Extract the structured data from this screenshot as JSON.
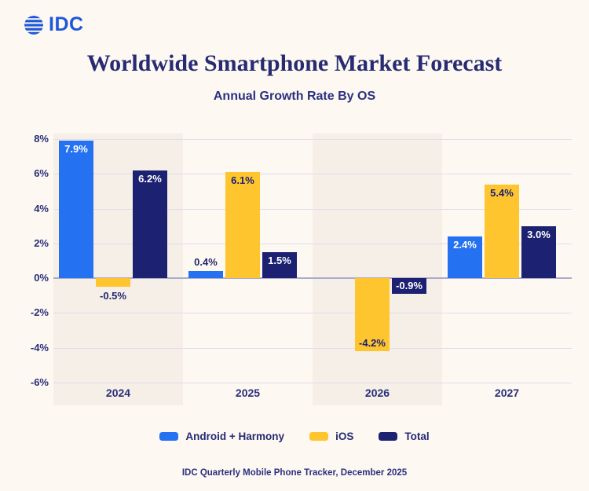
{
  "logo": {
    "brand": "IDC"
  },
  "header": {
    "title": "Worldwide Smartphone Market Forecast",
    "subtitle": "Annual Growth Rate By OS"
  },
  "footer": {
    "source_note": "IDC Quarterly Mobile Phone Tracker, December 2025"
  },
  "colors": {
    "background": "#FDF8F2",
    "band": "#F5EFE7",
    "gridline": "#DEDEEC",
    "zero_line": "#ABACCB",
    "text_navy": "#262B72",
    "android_blue": "#2471F2",
    "ios_yellow": "#FEC52F",
    "total_navy": "#1C2172",
    "logo_blue": "#1E58D8"
  },
  "chart_data": {
    "type": "bar",
    "title": "Worldwide Smartphone Market Forecast",
    "subtitle": "Annual Growth Rate By OS",
    "categories": [
      "2024",
      "2025",
      "2026",
      "2027"
    ],
    "ylim": [
      -6,
      8
    ],
    "grid": true,
    "legend_position": "bottom",
    "y_ticks": [
      {
        "label": "8%",
        "value": 8
      },
      {
        "label": "6%",
        "value": 6
      },
      {
        "label": "4%",
        "value": 4
      },
      {
        "label": "2%",
        "value": 2
      },
      {
        "label": "0%",
        "value": 0
      },
      {
        "label": "-2%",
        "value": -2
      },
      {
        "label": "-4%",
        "value": -4
      },
      {
        "label": "-6%",
        "value": -6
      }
    ],
    "outside_label_color": "#23286F",
    "series": [
      {
        "name": "Android + Harmony",
        "color": "#2471F2",
        "inside_label_color": "#FFFFFF",
        "bars": [
          {
            "label": "7.9%",
            "value": 7.9,
            "placement": "inside-top"
          },
          {
            "label": "0.4%",
            "value": 0.4,
            "placement": "outside-top"
          },
          {
            "label": "",
            "value": 0.0,
            "placement": "none"
          },
          {
            "label": "2.4%",
            "value": 2.4,
            "placement": "inside-top"
          }
        ]
      },
      {
        "name": "iOS",
        "color": "#FEC52F",
        "inside_label_color": "#1C2172",
        "bars": [
          {
            "label": "-0.5%",
            "value": -0.5,
            "placement": "outside-bottom"
          },
          {
            "label": "6.1%",
            "value": 6.1,
            "placement": "inside-top"
          },
          {
            "label": "-4.2%",
            "value": -4.2,
            "placement": "inside-bottom"
          },
          {
            "label": "5.4%",
            "value": 5.4,
            "placement": "inside-top"
          }
        ]
      },
      {
        "name": "Total",
        "color": "#1C2172",
        "inside_label_color": "#FFFFFF",
        "bars": [
          {
            "label": "6.2%",
            "value": 6.2,
            "placement": "inside-top"
          },
          {
            "label": "1.5%",
            "value": 1.5,
            "placement": "inside-top"
          },
          {
            "label": "-0.9%",
            "value": -0.9,
            "placement": "inside-bottom"
          },
          {
            "label": "3.0%",
            "value": 3.0,
            "placement": "inside-top"
          }
        ]
      }
    ]
  }
}
